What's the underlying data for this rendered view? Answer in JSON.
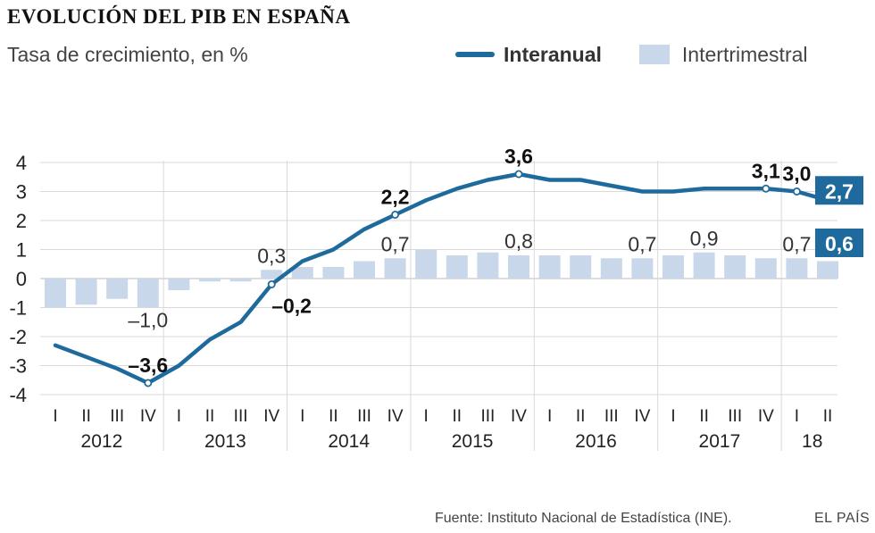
{
  "header": {
    "title": "EVOLUCIÓN DEL PIB EN ESPAÑA",
    "subtitle": "Tasa de crecimiento, en %"
  },
  "legend": {
    "line_label": "Interanual",
    "bar_label": "Intertrimestral"
  },
  "footer": {
    "source": "Fuente: Instituto Nacional de Estadística (INE).",
    "brand": "EL PAÍS"
  },
  "chart_data": {
    "type": "bar+line",
    "title": "EVOLUCIÓN DEL PIB EN ESPAÑA",
    "subtitle": "Tasa de crecimiento, en %",
    "ylim": [
      -4,
      4
    ],
    "yticks": [
      "4",
      "3",
      "2",
      "1",
      "0",
      "-1",
      "-2",
      "-3",
      "-4"
    ],
    "ytick_values": [
      4,
      3,
      2,
      1,
      0,
      -1,
      -2,
      -3,
      -4
    ],
    "grid": true,
    "quarters": [
      "I",
      "II",
      "III",
      "IV",
      "I",
      "II",
      "III",
      "IV",
      "I",
      "II",
      "III",
      "IV",
      "I",
      "II",
      "III",
      "IV",
      "I",
      "II",
      "III",
      "IV",
      "I",
      "II",
      "III",
      "IV",
      "I",
      "II"
    ],
    "years": [
      {
        "label": "2012",
        "quarters": 4
      },
      {
        "label": "2013",
        "quarters": 4
      },
      {
        "label": "2014",
        "quarters": 4
      },
      {
        "label": "2015",
        "quarters": 4
      },
      {
        "label": "2016",
        "quarters": 4
      },
      {
        "label": "2017",
        "quarters": 4
      },
      {
        "label": "18",
        "quarters": 2
      }
    ],
    "series": [
      {
        "name": "Intertrimestral",
        "type": "bar",
        "color": "#c9d7ea",
        "values": [
          -1.0,
          -0.9,
          -0.7,
          -1.0,
          -0.4,
          -0.1,
          -0.1,
          0.3,
          0.4,
          0.4,
          0.6,
          0.7,
          1.0,
          0.8,
          0.9,
          0.8,
          0.8,
          0.8,
          0.7,
          0.7,
          0.8,
          0.9,
          0.8,
          0.7,
          0.7,
          0.6
        ]
      },
      {
        "name": "Interanual",
        "type": "line",
        "color": "#1f6a9c",
        "values": [
          -2.3,
          -2.7,
          -3.1,
          -3.6,
          -3.0,
          -2.1,
          -1.5,
          -0.2,
          0.6,
          1.0,
          1.7,
          2.2,
          2.7,
          3.1,
          3.4,
          3.6,
          3.4,
          3.4,
          3.2,
          3.0,
          3.0,
          3.1,
          3.1,
          3.1,
          3.0,
          2.7
        ]
      }
    ],
    "annotations": [
      {
        "series": "Interanual",
        "index": 3,
        "text": "–3,6",
        "style": "bold",
        "pos": "above"
      },
      {
        "series": "Interanual",
        "index": 7,
        "text": "–0,2",
        "style": "bold",
        "pos": "below-right"
      },
      {
        "series": "Interanual",
        "index": 11,
        "text": "2,2",
        "style": "bold",
        "pos": "above"
      },
      {
        "series": "Interanual",
        "index": 15,
        "text": "3,6",
        "style": "bold",
        "pos": "above"
      },
      {
        "series": "Interanual",
        "index": 23,
        "text": "3,1",
        "style": "bold",
        "pos": "above"
      },
      {
        "series": "Interanual",
        "index": 24,
        "text": "3,0",
        "style": "bold",
        "pos": "above"
      },
      {
        "series": "Intertrimestral",
        "index": 3,
        "text": "–1,0",
        "style": "regular",
        "pos": "below"
      },
      {
        "series": "Intertrimestral",
        "index": 7,
        "text": "0,3",
        "style": "regular",
        "pos": "above"
      },
      {
        "series": "Intertrimestral",
        "index": 11,
        "text": "0,7",
        "style": "regular",
        "pos": "above"
      },
      {
        "series": "Intertrimestral",
        "index": 15,
        "text": "0,8",
        "style": "regular",
        "pos": "above"
      },
      {
        "series": "Intertrimestral",
        "index": 19,
        "text": "0,7",
        "style": "regular",
        "pos": "above"
      },
      {
        "series": "Intertrimestral",
        "index": 21,
        "text": "0,9",
        "style": "regular",
        "pos": "above"
      },
      {
        "series": "Intertrimestral",
        "index": 24,
        "text": "0,7",
        "style": "regular",
        "pos": "above"
      }
    ],
    "end_tags": [
      {
        "series": "Interanual",
        "text": "2,7"
      },
      {
        "series": "Intertrimestral",
        "text": "0,6"
      }
    ]
  }
}
